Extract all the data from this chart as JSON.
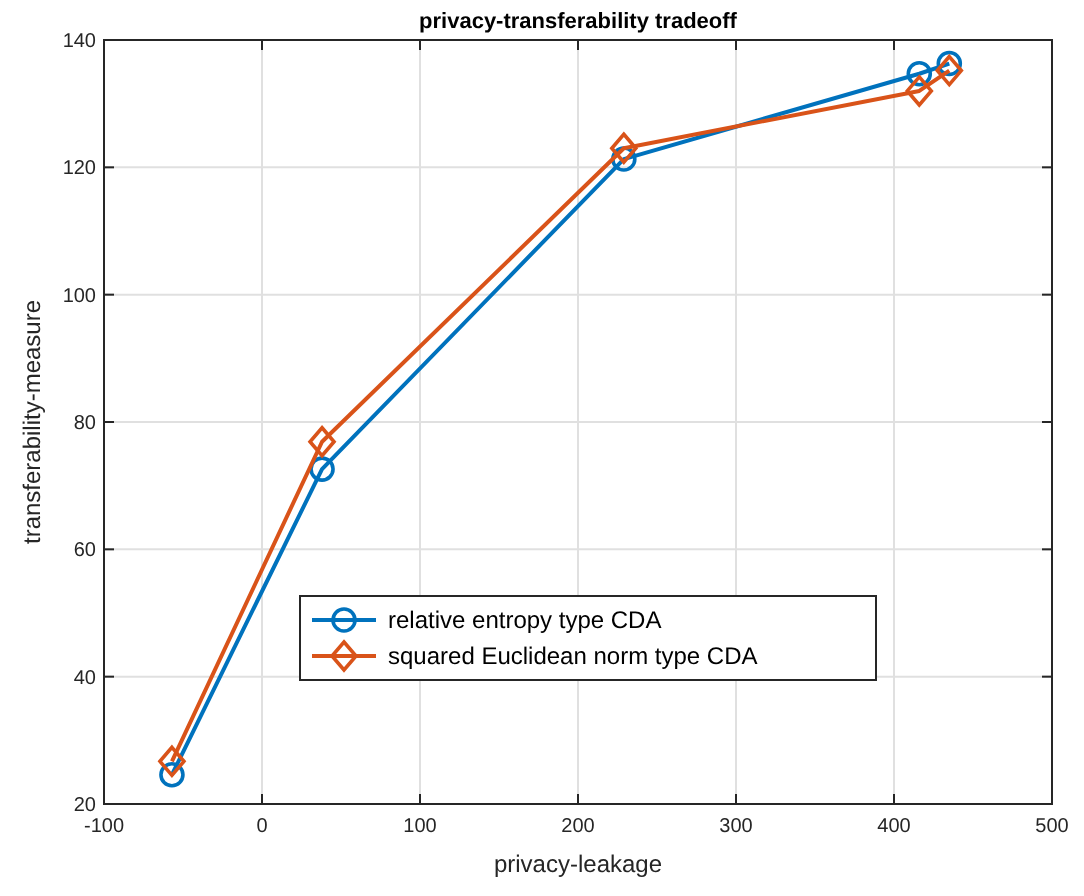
{
  "chart_data": {
    "type": "line",
    "title": "privacy-transferability tradeoff",
    "xlabel": "privacy-leakage",
    "ylabel": "transferability-measure",
    "xlim": [
      -100,
      500
    ],
    "xticks": [
      -100,
      0,
      100,
      200,
      300,
      400,
      500
    ],
    "ylim": [
      20,
      140
    ],
    "yticks": [
      20,
      40,
      60,
      80,
      100,
      120,
      140
    ],
    "grid": true,
    "legend": "bottom right",
    "series": [
      {
        "name": "relative entropy type CDA",
        "color": "#0072bd",
        "marker": "circle",
        "x": [
          -57,
          38,
          229,
          416,
          435
        ],
        "values": [
          24.6,
          72.6,
          121.3,
          134.7,
          136.3
        ]
      },
      {
        "name": "squared Euclidean norm type CDA",
        "color": "#d95319",
        "marker": "diamond",
        "x": [
          -57,
          38,
          229,
          416,
          435
        ],
        "values": [
          26.7,
          76.9,
          123,
          132,
          135.2
        ]
      }
    ]
  }
}
